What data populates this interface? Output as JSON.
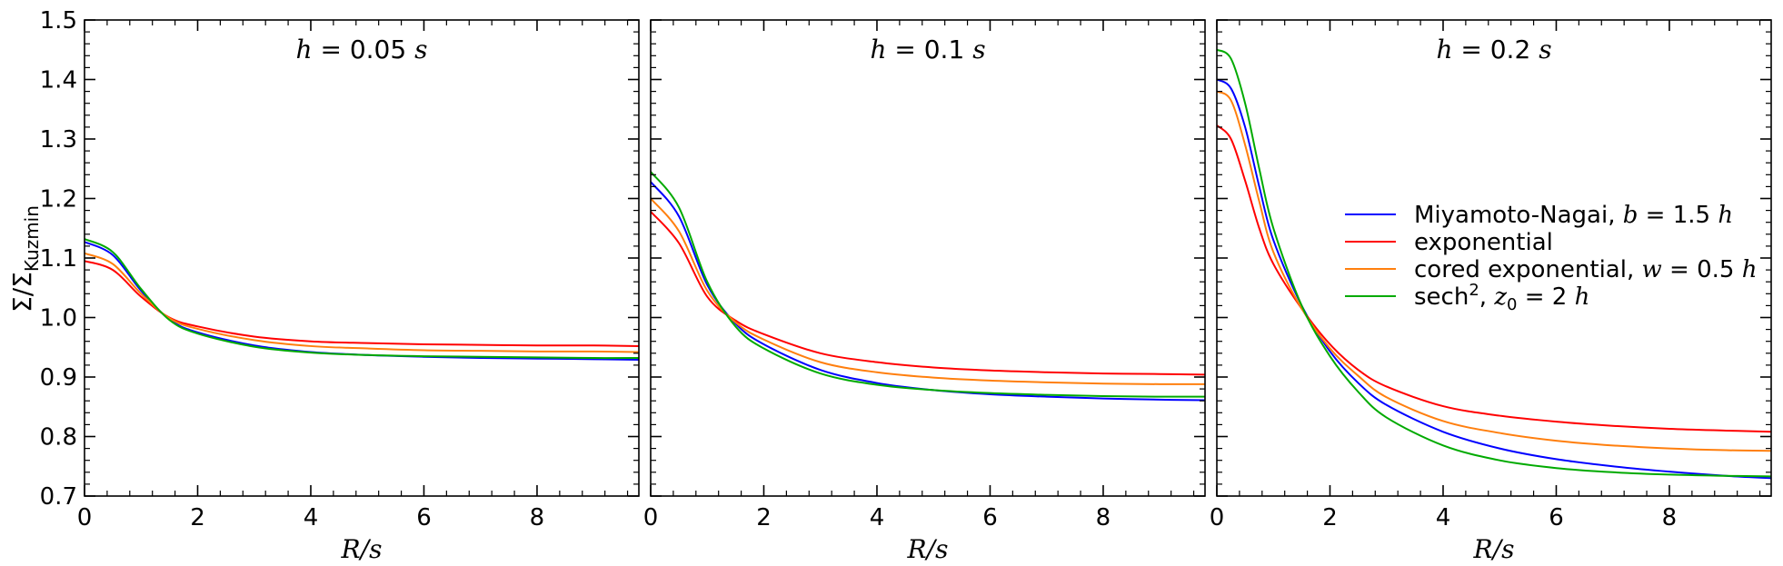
{
  "chart_data": [
    {
      "type": "line",
      "title": "h = 0.05 s",
      "title_parts": {
        "var": "h",
        "eq": " = 0.05 ",
        "unit": "s"
      },
      "xlabel": "R/s",
      "ylabel": "Σ/Σ",
      "ylabel_sub": "Kuzmin",
      "xlim": [
        0,
        9.8
      ],
      "ylim": [
        0.7,
        1.5
      ],
      "xticks": [
        0,
        2,
        4,
        6,
        8
      ],
      "yticks": [
        0.7,
        0.8,
        0.9,
        1.0,
        1.1,
        1.2,
        1.3,
        1.4,
        1.5
      ],
      "x": [
        0,
        0.5,
        1.0,
        1.5,
        2.0,
        3.0,
        4.0,
        5.0,
        6.0,
        7.0,
        8.0,
        9.0,
        9.8
      ],
      "series": [
        {
          "name": "Miyamoto-Nagai, b = 1.5 h",
          "color": "#0000ff",
          "values": [
            1.127,
            1.105,
            1.045,
            0.997,
            0.975,
            0.953,
            0.942,
            0.937,
            0.934,
            0.932,
            0.931,
            0.93,
            0.929
          ]
        },
        {
          "name": "exponential",
          "color": "#ff0000",
          "values": [
            1.095,
            1.08,
            1.035,
            1.0,
            0.985,
            0.968,
            0.96,
            0.957,
            0.955,
            0.954,
            0.953,
            0.953,
            0.952
          ]
        },
        {
          "name": "cored exponential, w = 0.5 h",
          "color": "#ff7f0e",
          "values": [
            1.108,
            1.09,
            1.04,
            0.999,
            0.981,
            0.962,
            0.952,
            0.948,
            0.945,
            0.944,
            0.943,
            0.943,
            0.942
          ]
        },
        {
          "name": "sech², z₀ = 2 h",
          "color": "#00aa00",
          "values": [
            1.132,
            1.11,
            1.048,
            0.996,
            0.973,
            0.951,
            0.941,
            0.937,
            0.935,
            0.934,
            0.933,
            0.932,
            0.932
          ]
        }
      ]
    },
    {
      "type": "line",
      "title": "h = 0.1 s",
      "title_parts": {
        "var": "h",
        "eq": " = 0.1 ",
        "unit": "s"
      },
      "xlabel": "R/s",
      "xlim": [
        0,
        9.8
      ],
      "ylim": [
        0.7,
        1.5
      ],
      "xticks": [
        0,
        2,
        4,
        6,
        8
      ],
      "x": [
        0,
        0.5,
        1.0,
        1.5,
        2.0,
        3.0,
        4.0,
        5.0,
        6.0,
        7.0,
        8.0,
        9.0,
        9.8
      ],
      "series": [
        {
          "name": "Miyamoto-Nagai, b = 1.5 h",
          "color": "#0000ff",
          "values": [
            1.228,
            1.17,
            1.055,
            0.99,
            0.955,
            0.912,
            0.89,
            0.878,
            0.871,
            0.867,
            0.864,
            0.862,
            0.861
          ]
        },
        {
          "name": "exponential",
          "color": "#ff0000",
          "values": [
            1.178,
            1.125,
            1.035,
            0.995,
            0.972,
            0.94,
            0.925,
            0.916,
            0.911,
            0.908,
            0.906,
            0.905,
            0.904
          ]
        },
        {
          "name": "cored exponential, w = 0.5 h",
          "color": "#ff7f0e",
          "values": [
            1.2,
            1.145,
            1.045,
            0.992,
            0.963,
            0.925,
            0.908,
            0.899,
            0.894,
            0.891,
            0.889,
            0.888,
            0.888
          ]
        },
        {
          "name": "sech², z₀ = 2 h",
          "color": "#00aa00",
          "values": [
            1.245,
            1.185,
            1.06,
            0.985,
            0.948,
            0.906,
            0.887,
            0.878,
            0.873,
            0.87,
            0.868,
            0.867,
            0.867
          ]
        }
      ]
    },
    {
      "type": "line",
      "title": "h = 0.2 s",
      "title_parts": {
        "var": "h",
        "eq": " = 0.2 ",
        "unit": "s"
      },
      "xlabel": "R/s",
      "xlim": [
        0,
        9.8
      ],
      "ylim": [
        0.7,
        1.5
      ],
      "xticks": [
        0,
        2,
        4,
        6,
        8
      ],
      "x": [
        0,
        0.25,
        0.5,
        0.75,
        1.0,
        1.5,
        2.0,
        2.5,
        3.0,
        4.0,
        5.0,
        6.0,
        7.0,
        8.0,
        9.0,
        9.8
      ],
      "series": [
        {
          "name": "Miyamoto-Nagai, b = 1.5 h",
          "color": "#0000ff",
          "values": [
            1.4,
            1.385,
            1.32,
            1.22,
            1.13,
            1.02,
            0.943,
            0.89,
            0.853,
            0.808,
            0.78,
            0.762,
            0.75,
            0.741,
            0.734,
            0.73
          ]
        },
        {
          "name": "exponential",
          "color": "#ff0000",
          "values": [
            1.323,
            1.3,
            1.23,
            1.15,
            1.09,
            1.015,
            0.955,
            0.912,
            0.884,
            0.851,
            0.835,
            0.825,
            0.818,
            0.813,
            0.81,
            0.808
          ]
        },
        {
          "name": "cored exponential, w = 0.5 h",
          "color": "#ff7f0e",
          "values": [
            1.38,
            1.365,
            1.29,
            1.195,
            1.11,
            1.015,
            0.948,
            0.902,
            0.866,
            0.826,
            0.806,
            0.793,
            0.785,
            0.78,
            0.777,
            0.776
          ]
        },
        {
          "name": "sech², z₀ = 2 h",
          "color": "#00aa00",
          "values": [
            1.45,
            1.435,
            1.36,
            1.25,
            1.15,
            1.02,
            0.935,
            0.875,
            0.832,
            0.785,
            0.76,
            0.747,
            0.74,
            0.736,
            0.734,
            0.733
          ]
        }
      ]
    }
  ],
  "legend": {
    "placement": "center-right of third panel",
    "entries": [
      {
        "color": "#0000ff",
        "text": "Miyamoto-Nagai, ",
        "var": "b",
        "rest": " = 1.5 ",
        "var2": "h"
      },
      {
        "color": "#ff0000",
        "text": "exponential",
        "var": "",
        "rest": "",
        "var2": ""
      },
      {
        "color": "#ff7f0e",
        "text": "cored exponential, ",
        "var": "w",
        "rest": " = 0.5 ",
        "var2": "h"
      },
      {
        "color": "#00aa00",
        "text": "sech",
        "sup": "2",
        "sep": ", ",
        "var": "z",
        "sub": "0",
        "rest": " = 2 ",
        "var2": "h"
      }
    ]
  }
}
